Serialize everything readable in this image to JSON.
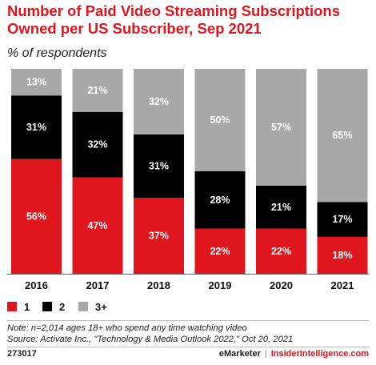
{
  "title": "Number of Paid Video Streaming Subscriptions Owned per US Subscriber, Sep 2021",
  "subtitle": "% of respondents",
  "colors": {
    "1": "#e0161f",
    "2": "#000000",
    "3+": "#a8a8a8",
    "accent": "#e0161f"
  },
  "chart_data": {
    "type": "bar",
    "stacked": true,
    "categories": [
      "2016",
      "2017",
      "2018",
      "2019",
      "2020",
      "2021"
    ],
    "series": [
      {
        "name": "1",
        "values": [
          56,
          47,
          37,
          22,
          22,
          18
        ],
        "labels": [
          "56%",
          "47%",
          "37%",
          "22%",
          "22%",
          "18%"
        ]
      },
      {
        "name": "2",
        "values": [
          31,
          32,
          31,
          28,
          21,
          17
        ],
        "labels": [
          "31%",
          "32%",
          "31%",
          "28%",
          "21%",
          "17%"
        ]
      },
      {
        "name": "3+",
        "values": [
          13,
          21,
          32,
          50,
          57,
          65
        ],
        "labels": [
          "13%",
          "21%",
          "32%",
          "50%",
          "57%",
          "65%"
        ]
      }
    ],
    "legend_position": "bottom-left",
    "grid": false
  },
  "legend": [
    "1",
    "2",
    "3+"
  ],
  "note": "Note: n=2,014 ages 18+ who spend any time watching video",
  "source": "Source: Activate Inc., \"Technology & Media Outlook 2022,\" Oct 20, 2021",
  "footer": {
    "id": "273017",
    "brand1": "eMarketer",
    "separator": "|",
    "brand2": "InsiderIntelligence.com"
  }
}
